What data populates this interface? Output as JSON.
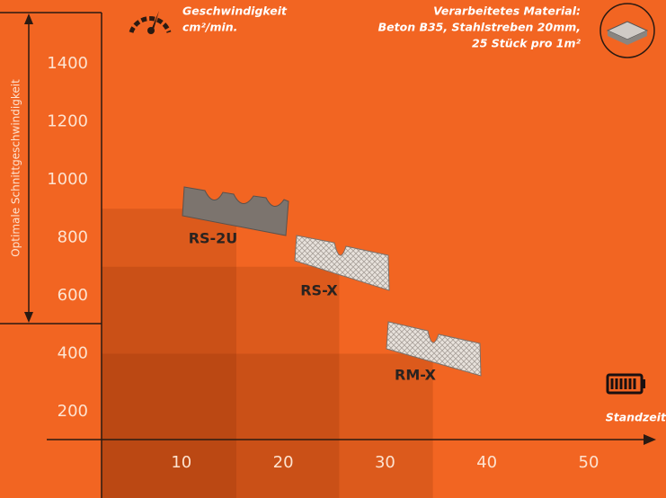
{
  "chart_data": {
    "type": "bar",
    "title_lines": [
      "Geschwindigkeit",
      "cm²/min."
    ],
    "material_lines": [
      "Verarbeitetes Material:",
      "Beton B35, Stahlstreben 20mm,",
      "25 Stück pro 1m²"
    ],
    "y_label": "Optimale Schnittgeschwindigkeit",
    "x_label": "Standzeit",
    "categories": [
      "RS-2U",
      "RS-X",
      "RM-X"
    ],
    "x": [
      15.4,
      25.5,
      34.7
    ],
    "values": [
      900,
      700,
      400
    ],
    "color": "rgba(110,35,0,0.17)",
    "xlim": [
      0,
      57
    ],
    "ylim": [
      0,
      1600
    ],
    "xticks": [
      10,
      20,
      30,
      40,
      50
    ],
    "yticks": [
      200,
      400,
      600,
      800,
      1000,
      1200,
      1400
    ]
  }
}
